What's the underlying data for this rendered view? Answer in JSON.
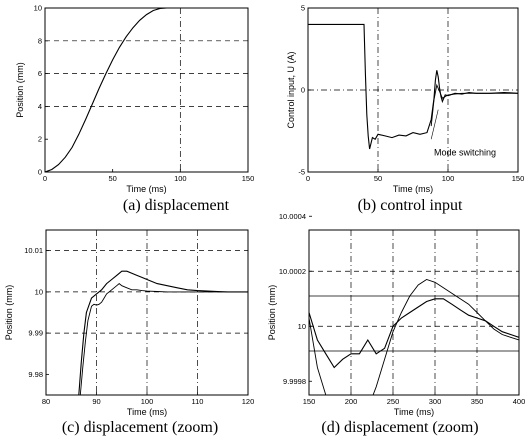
{
  "chart_data": [
    {
      "type": "line",
      "caption": "(a) displacement",
      "xlabel": "Time (ms)",
      "ylabel": "Position (mm)",
      "xlim": [
        0,
        150
      ],
      "ylim": [
        0,
        10
      ],
      "xticks": [
        "0",
        "50",
        "100",
        "150"
      ],
      "yticks": [
        "0",
        "2",
        "4",
        "6",
        "8",
        "10"
      ],
      "series": [
        {
          "x": [
            0,
            5,
            10,
            15,
            20,
            25,
            30,
            35,
            40,
            45,
            50,
            55,
            60,
            65,
            70,
            75,
            80,
            85,
            90,
            95,
            100,
            110,
            120,
            130,
            140,
            150
          ],
          "y": [
            0,
            0.15,
            0.45,
            0.9,
            1.5,
            2.3,
            3.2,
            4.15,
            5.1,
            6.0,
            6.85,
            7.6,
            8.25,
            8.8,
            9.25,
            9.6,
            9.85,
            9.97,
            10,
            10,
            10,
            10,
            10,
            10,
            10,
            10
          ]
        }
      ]
    },
    {
      "type": "line",
      "caption": "(b) control input",
      "xlabel": "Time (ms)",
      "ylabel": "Control input, U (A)",
      "xlim": [
        0,
        150
      ],
      "ylim": [
        -5,
        5
      ],
      "xticks": [
        "0",
        "50",
        "100",
        "150"
      ],
      "yticks": [
        "5",
        "0",
        "-5"
      ],
      "annotation": "Mode switching",
      "series": [
        {
          "x": [
            0,
            5,
            10,
            20,
            30,
            38,
            40,
            41,
            42,
            43,
            44,
            46,
            48,
            50,
            55,
            60,
            65,
            70,
            75,
            80,
            85,
            88,
            90,
            91,
            92,
            93,
            94,
            95,
            96,
            97,
            98,
            100,
            105,
            110,
            115,
            120,
            130,
            140,
            150
          ],
          "y": [
            4,
            4,
            4,
            4,
            4,
            4,
            4,
            1,
            -1.5,
            -2.8,
            -3.6,
            -2.9,
            -3.0,
            -2.7,
            -2.8,
            -2.9,
            -2.75,
            -2.8,
            -2.6,
            -2.7,
            -2.6,
            -1.8,
            -0.5,
            0.6,
            1.2,
            0.8,
            0.1,
            -0.4,
            -0.7,
            -0.5,
            -0.3,
            -0.35,
            -0.2,
            -0.25,
            -0.15,
            -0.2,
            -0.2,
            -0.15,
            -0.2
          ]
        },
        {
          "x": [
            88,
            90,
            92,
            94,
            96,
            98,
            100,
            105,
            110,
            120,
            130,
            140,
            150
          ],
          "y": [
            -2.2,
            -0.6,
            0.3,
            -0.1,
            -0.5,
            -0.4,
            -0.3,
            -0.25,
            -0.2,
            -0.2,
            -0.2,
            -0.2,
            -0.2
          ]
        }
      ]
    },
    {
      "type": "line",
      "caption": "(c)   displacement (zoom)",
      "xlabel": "Time (ms)",
      "ylabel": "Position (mm)",
      "xlim": [
        80,
        120
      ],
      "ylim": [
        9.975,
        10.015
      ],
      "xticks": [
        "80",
        "90",
        "100",
        "110",
        "120"
      ],
      "yticks": [
        "10.01",
        "10",
        "9.99",
        "9.98"
      ],
      "series": [
        {
          "x": [
            86.5,
            87,
            87.5,
            88,
            89,
            90,
            91,
            92,
            93,
            94,
            95,
            96,
            97,
            98,
            99,
            100,
            102,
            104,
            106,
            108,
            110,
            112,
            114,
            116,
            118,
            120
          ],
          "y": [
            9.975,
            9.983,
            9.99,
            9.995,
            9.9985,
            9.9995,
            10.0005,
            10.002,
            10.003,
            10.004,
            10.005,
            10.005,
            10.0045,
            10.004,
            10.0035,
            10.003,
            10.002,
            10.0015,
            10.001,
            10.0005,
            10.0003,
            10.0002,
            10.0001,
            10,
            10,
            10
          ]
        },
        {
          "x": [
            86.8,
            87.3,
            87.8,
            88.3,
            89,
            89.5,
            90,
            90.5,
            91,
            91.5,
            92,
            93,
            94,
            94.5,
            95,
            96,
            97,
            98,
            99,
            100,
            102,
            104,
            106,
            108,
            110,
            112,
            114,
            116,
            118,
            120
          ],
          "y": [
            9.975,
            9.982,
            9.988,
            9.993,
            9.9965,
            9.997,
            9.9968,
            9.997,
            9.9975,
            9.9985,
            9.9995,
            10.0005,
            10.0015,
            10.002,
            10.0015,
            10.001,
            10.0005,
            10.0005,
            10.0003,
            10.0002,
            10.0001,
            10,
            10,
            10,
            10,
            10,
            10,
            10,
            10,
            10
          ]
        }
      ]
    },
    {
      "type": "line",
      "caption": "(d) displacement (zoom)",
      "xlabel": "Time (ms)",
      "ylabel": "Position (mm)",
      "xlim": [
        150,
        400
      ],
      "ylim": [
        9.99975,
        10.00035
      ],
      "xticks": [
        "150",
        "200",
        "250",
        "300",
        "350",
        "400"
      ],
      "yticks": [
        "10.0004",
        "10.0002",
        "10",
        "9.9998"
      ],
      "series": [
        {
          "x": [
            150,
            160,
            170,
            180,
            190,
            200,
            210,
            220,
            230,
            240,
            250,
            260,
            270,
            280,
            290,
            300,
            310,
            320,
            330,
            340,
            350,
            360,
            370,
            380,
            390,
            400
          ],
          "y": [
            10.00005,
            9.99995,
            9.9999,
            9.99985,
            9.99988,
            9.9999,
            9.9999,
            9.99995,
            9.9999,
            9.99992,
            10.0,
            10.00003,
            10.00005,
            10.00007,
            10.00009,
            10.0001,
            10.0001,
            10.00008,
            10.00006,
            10.00004,
            10.00003,
            10.00002,
            10.0,
            9.99998,
            9.99997,
            9.99996
          ]
        },
        {
          "x": [
            150,
            160,
            170,
            180,
            190,
            200,
            210,
            220,
            230,
            240,
            250,
            260,
            270,
            280,
            290,
            300,
            310,
            320,
            330,
            340,
            350,
            360,
            370,
            380,
            390,
            400
          ],
          "y": [
            10.00003,
            9.99985,
            9.99975,
            9.9997,
            9.99968,
            9.9997,
            9.99965,
            9.9997,
            9.99978,
            9.99988,
            9.99998,
            10.00005,
            10.00011,
            10.00015,
            10.00017,
            10.00016,
            10.00014,
            10.00012,
            10.0001,
            10.00008,
            10.00005,
            10.00002,
            9.99999,
            9.99997,
            9.99996,
            9.99995
          ]
        }
      ]
    }
  ]
}
